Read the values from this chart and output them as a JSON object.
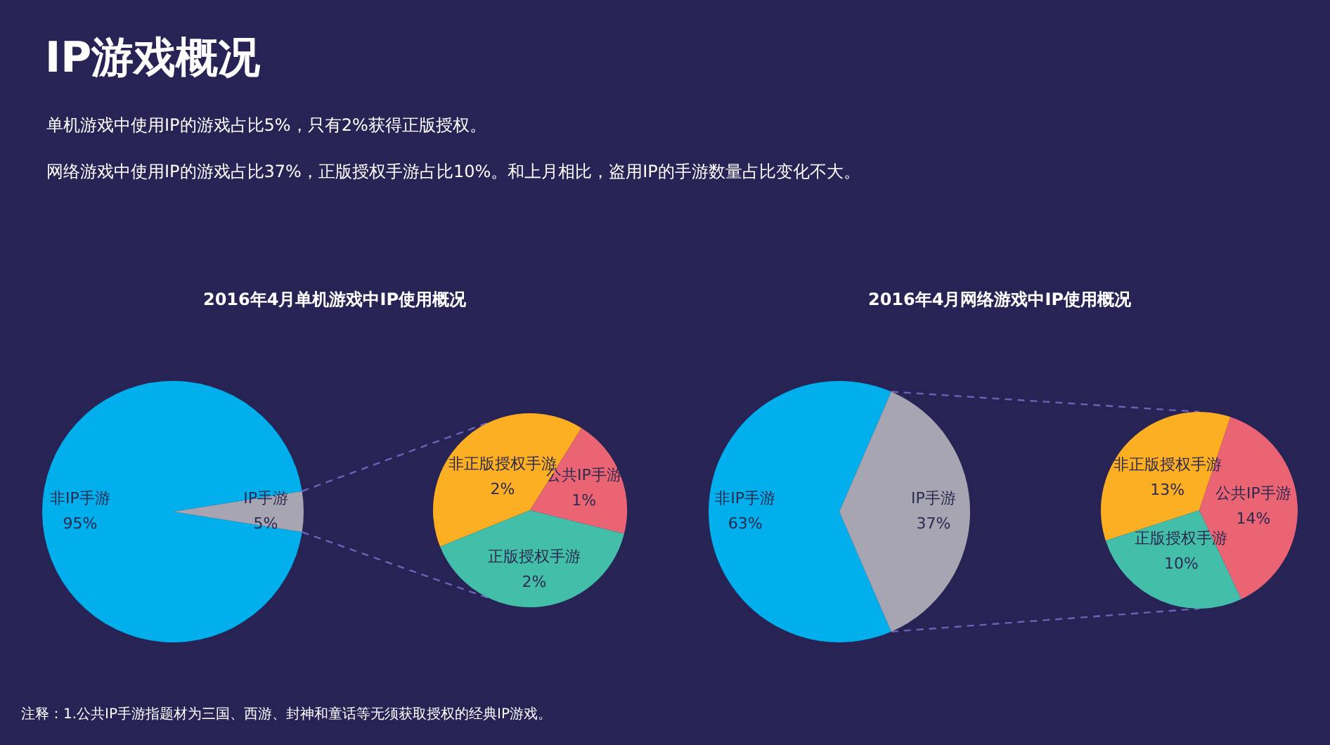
{
  "chart_data": [
    {
      "type": "other",
      "title": "IP游戏概况",
      "annotations": [
        "单机游戏中使用IP的游戏占比5%，只有2%获得正版授权。",
        "网络游戏中使用IP的游戏占比37%，正版授权手游占比10%。和上月相比，盗用IP的手游数量占比变化不大。",
        "注释：1.公共IP手游指题材为三国、西游、封神和童话等无须获取授权的经典IP游戏。"
      ]
    },
    {
      "type": "pie",
      "title": "2016年4月单机游戏中IP使用概况",
      "categories": [
        "非IP手游",
        "IP手游"
      ],
      "values": [
        95,
        5
      ],
      "colors": [
        "#00afec",
        "#a7a5b2"
      ],
      "value_labels": [
        "95%",
        "5%"
      ]
    },
    {
      "type": "pie",
      "categories": [
        "非正版授权手游",
        "公共IP手游",
        "正版授权手游"
      ],
      "values": [
        2,
        1,
        2
      ],
      "colors": [
        "#fcaf22",
        "#ea6474",
        "#42bea9"
      ],
      "value_labels": [
        "2%",
        "1%",
        "2%"
      ]
    },
    {
      "type": "pie",
      "title": "2016年4月网络游戏中IP使用概况",
      "categories": [
        "非IP手游",
        "IP手游"
      ],
      "values": [
        63,
        37
      ],
      "colors": [
        "#00afec",
        "#a7a5b2"
      ],
      "value_labels": [
        "63%",
        "37%"
      ]
    },
    {
      "type": "pie",
      "categories": [
        "非正版授权手游",
        "公共IP手游",
        "正版授权手游"
      ],
      "values": [
        13,
        14,
        10
      ],
      "colors": [
        "#fcaf22",
        "#ea6474",
        "#42bea9"
      ],
      "value_labels": [
        "13%",
        "14%",
        "10%"
      ]
    }
  ]
}
